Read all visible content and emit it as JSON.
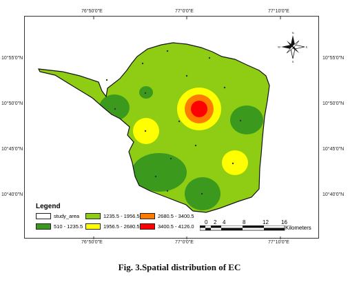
{
  "coords": {
    "top": [
      "76°50'0\"E",
      "77°0'0\"E",
      "77°10'0\"E"
    ],
    "bottom": [
      "76°50'0\"E",
      "77°0'0\"E",
      "77°10'0\"E"
    ],
    "left": [
      "10°55'0\"N",
      "10°50'0\"N",
      "10°45'0\"N",
      "10°40'0\"N"
    ],
    "right": [
      "10°55'0\"N",
      "10°50'0\"N",
      "10°45'0\"N",
      "10°40'0\"N"
    ]
  },
  "north_arrow": {
    "letters": [
      "N",
      "S",
      "E",
      "W"
    ]
  },
  "legend": {
    "title": "Legend",
    "items": [
      {
        "label": "study_area",
        "color": "#ffffff"
      },
      {
        "label": "510 - 1235.5",
        "color": "#3b9a1e"
      },
      {
        "label": "1235.5 - 1956.5",
        "color": "#8fcc14"
      },
      {
        "label": "1956.5 - 2680.5",
        "color": "#ffff00"
      },
      {
        "label": "2680.5 - 3400.5",
        "color": "#ff7b00"
      },
      {
        "label": "3400.5 - 4126.0",
        "color": "#ff0000"
      }
    ]
  },
  "scale_bar": {
    "ticks": [
      "0",
      "2",
      "4",
      "8",
      "12",
      "16"
    ],
    "unit": "Kilometers"
  },
  "caption": "Fig. 3.Spatial distribution of EC"
}
